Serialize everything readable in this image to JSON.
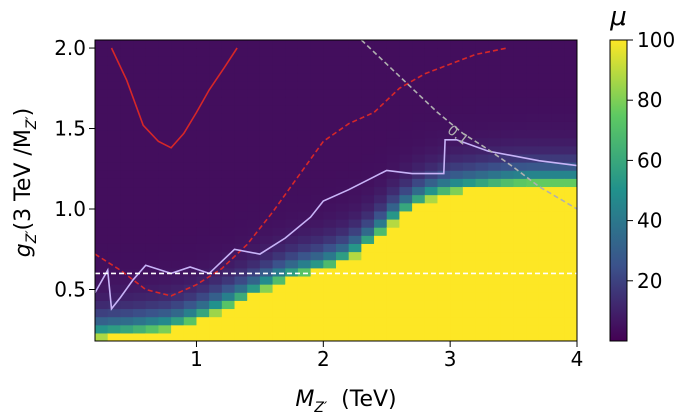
{
  "chart_data": {
    "type": "heatmap",
    "title": "",
    "xlabel_main": "M",
    "xlabel_sub": "Z′",
    "xlabel_unit": "(TeV)",
    "ylabel_main": "g",
    "ylabel_sub": "Z′",
    "ylabel_rest": "(3 TeV /M",
    "ylabel_rest_sub": "Z′",
    "ylabel_close": ")",
    "xlim": [
      0.2,
      4.0
    ],
    "ylim": [
      0.18,
      2.05
    ],
    "xticks": [
      "1",
      "2",
      "3",
      "4"
    ],
    "yticks": [
      "0.5",
      "1.0",
      "1.5",
      "2.0"
    ],
    "colorbar": {
      "label": "μ",
      "range": [
        0,
        100
      ],
      "ticks": [
        "20",
        "40",
        "60",
        "80",
        "100"
      ],
      "colors": [
        "#440154",
        "#3b528b",
        "#21918c",
        "#5ec962",
        "#fde725"
      ]
    },
    "yellow_boundary": {
      "x": [
        0.2,
        0.5,
        0.8,
        1.0,
        1.2,
        1.4,
        1.6,
        1.8,
        2.0,
        2.2,
        2.4,
        2.6,
        2.8,
        3.0,
        3.2,
        3.4,
        3.6,
        3.8,
        4.0
      ],
      "y": [
        0.2,
        0.22,
        0.25,
        0.3,
        0.37,
        0.44,
        0.52,
        0.58,
        0.62,
        0.68,
        0.8,
        0.95,
        1.05,
        1.1,
        1.12,
        1.14,
        1.15,
        1.15,
        1.15
      ]
    },
    "lines": [
      {
        "color": "#d62728",
        "style": "solid",
        "x": [
          0.33,
          0.45,
          0.58,
          0.7,
          0.8,
          0.9,
          1.0,
          1.1,
          1.22,
          1.32
        ],
        "y": [
          2.0,
          1.8,
          1.52,
          1.42,
          1.38,
          1.47,
          1.6,
          1.74,
          1.88,
          2.0
        ]
      },
      {
        "color": "#d62728",
        "style": "dashed",
        "x": [
          0.2,
          0.4,
          0.6,
          0.8,
          1.0,
          1.2,
          1.4,
          1.6,
          1.8,
          2.0,
          2.2,
          2.4,
          2.6,
          2.8,
          3.0,
          3.2,
          3.45
        ],
        "y": [
          0.72,
          0.62,
          0.5,
          0.46,
          0.53,
          0.63,
          0.78,
          0.98,
          1.2,
          1.42,
          1.53,
          1.6,
          1.75,
          1.84,
          1.9,
          1.96,
          2.0
        ]
      },
      {
        "color": "#c8b4f8",
        "style": "solid",
        "x": [
          0.2,
          0.3,
          0.33,
          0.4,
          0.5,
          0.6,
          0.8,
          0.95,
          1.1,
          1.3,
          1.5,
          1.7,
          1.9,
          2.0,
          2.2,
          2.4,
          2.5,
          2.7,
          2.95,
          2.96,
          3.05,
          3.3,
          3.7,
          4.0
        ],
        "y": [
          0.48,
          0.62,
          0.38,
          0.45,
          0.56,
          0.65,
          0.6,
          0.64,
          0.6,
          0.75,
          0.72,
          0.82,
          0.95,
          1.05,
          1.12,
          1.2,
          1.24,
          1.22,
          1.22,
          1.43,
          1.43,
          1.36,
          1.3,
          1.27
        ]
      },
      {
        "color": "#b0b0b0",
        "style": "dashed",
        "x": [
          2.3,
          2.5,
          2.7,
          2.9,
          3.1,
          3.3,
          3.5,
          3.7,
          4.0
        ],
        "y": [
          2.05,
          1.9,
          1.75,
          1.6,
          1.47,
          1.37,
          1.26,
          1.14,
          1.0
        ]
      },
      {
        "color": "#ffffff",
        "style": "dashed",
        "x": [
          0.2,
          4.0
        ],
        "y": [
          0.6,
          0.6
        ]
      }
    ],
    "annotation": {
      "text": "0.1",
      "x": 2.97,
      "y": 1.48,
      "color": "#b0b0b0"
    }
  }
}
